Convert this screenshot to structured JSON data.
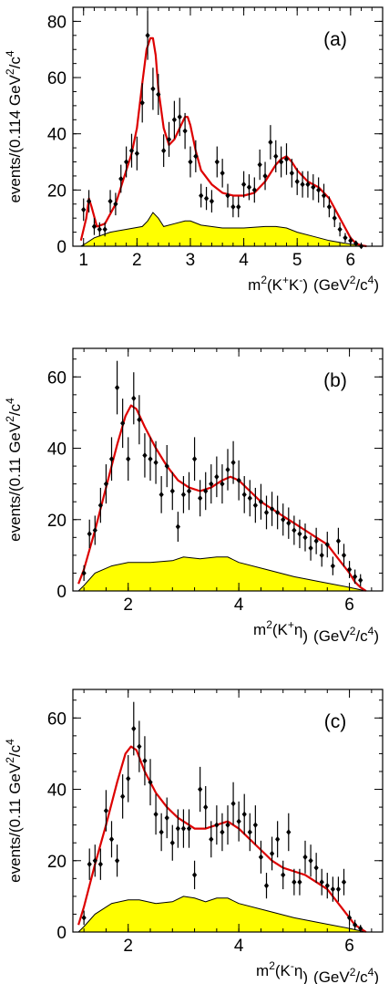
{
  "colors": {
    "fit": "#dd0000",
    "background_fill": "#ffff00",
    "background_edge": "#000000",
    "points": "#000000"
  },
  "chart_data": [
    {
      "type": "scatter",
      "panel_label": "(a)",
      "xlabel": {
        "main": "m",
        "sup1": "2",
        "paren_open": "(K",
        "sup2": "+",
        "mid": "K",
        "sup3": "-",
        "paren_close": ")",
        "unit_pre": "(GeV",
        "unit_sup1": "2",
        "unit_mid": "/c",
        "unit_sup2": "4",
        "unit_post": ")"
      },
      "ylabel": {
        "pre": "events/(0.114 GeV",
        "sup1": "2",
        "mid": "/c",
        "sup2": "4"
      },
      "xlim": [
        0.8,
        6.6
      ],
      "ylim": [
        0,
        85
      ],
      "xticks": [
        1,
        2,
        3,
        4,
        5,
        6
      ],
      "yticks": [
        0,
        20,
        40,
        60,
        80
      ],
      "data": {
        "x": [
          1.0,
          1.1,
          1.2,
          1.3,
          1.4,
          1.5,
          1.6,
          1.7,
          1.8,
          1.9,
          2.0,
          2.1,
          2.2,
          2.3,
          2.4,
          2.5,
          2.6,
          2.7,
          2.8,
          2.9,
          3.0,
          3.1,
          3.2,
          3.3,
          3.4,
          3.5,
          3.6,
          3.7,
          3.8,
          3.9,
          4.0,
          4.1,
          4.2,
          4.3,
          4.4,
          4.5,
          4.6,
          4.7,
          4.8,
          4.9,
          5.0,
          5.1,
          5.2,
          5.3,
          5.4,
          5.5,
          5.6,
          5.7,
          5.8,
          5.9,
          6.0,
          6.1,
          6.2
        ],
        "y": [
          13,
          16,
          7,
          6,
          6,
          16,
          15,
          24,
          30,
          34,
          33,
          51,
          75,
          56,
          54,
          34,
          38,
          45,
          46,
          41,
          30,
          32,
          18,
          17,
          16,
          30,
          26,
          18,
          14,
          14,
          22,
          21,
          20,
          29,
          25,
          37,
          32,
          30,
          31,
          26,
          23,
          22,
          22,
          21,
          20,
          18,
          14,
          10,
          6,
          3,
          2,
          1,
          0
        ],
        "err": [
          4,
          4,
          3,
          2.5,
          2.5,
          4,
          4,
          5,
          5.5,
          6,
          6,
          7,
          8.7,
          7.5,
          7.3,
          5.8,
          6.2,
          6.7,
          6.8,
          6.4,
          5.5,
          5.7,
          4.2,
          4.1,
          4,
          5.5,
          5.1,
          4.2,
          3.7,
          3.7,
          4.7,
          4.6,
          4.5,
          5.4,
          5,
          6.1,
          5.7,
          5.5,
          5.6,
          5.1,
          4.8,
          4.7,
          4.7,
          4.6,
          4.5,
          4.2,
          3.7,
          3.2,
          2.5,
          1.7,
          1.4,
          1,
          0.5
        ]
      },
      "fit": {
        "x": [
          0.95,
          1.05,
          1.1,
          1.15,
          1.25,
          1.4,
          1.6,
          1.8,
          1.9,
          2.0,
          2.1,
          2.18,
          2.25,
          2.3,
          2.35,
          2.4,
          2.5,
          2.6,
          2.7,
          2.8,
          2.9,
          2.95,
          3.0,
          3.1,
          3.2,
          3.4,
          3.6,
          3.8,
          4.0,
          4.2,
          4.4,
          4.6,
          4.7,
          4.8,
          4.9,
          5.0,
          5.2,
          5.4,
          5.6,
          5.8,
          6.0,
          6.1,
          6.2,
          6.3
        ],
        "y": [
          2,
          10,
          17,
          14,
          7,
          8,
          15,
          27,
          33,
          42,
          58,
          70,
          74,
          74,
          68,
          56,
          42,
          36,
          38,
          42,
          46,
          46,
          43,
          34,
          27,
          22,
          19,
          18,
          18,
          19,
          23,
          29,
          31,
          32,
          30,
          27,
          23,
          21,
          17,
          10,
          3,
          1,
          0.3,
          0
        ]
      },
      "background": {
        "x": [
          0.95,
          1.0,
          1.2,
          1.5,
          1.8,
          2.1,
          2.2,
          2.3,
          2.4,
          2.5,
          2.7,
          2.9,
          3.0,
          3.2,
          3.6,
          4.0,
          4.4,
          4.6,
          4.8,
          5.0,
          5.3,
          5.6,
          5.9,
          6.3
        ],
        "y": [
          0,
          0.5,
          3,
          5,
          6,
          7,
          9,
          12,
          10,
          7,
          8,
          9,
          9,
          7.5,
          6.5,
          6.5,
          7,
          7,
          6.5,
          5,
          3.5,
          2,
          1,
          0
        ]
      }
    },
    {
      "type": "scatter",
      "panel_label": "(b)",
      "xlabel": {
        "main": "m",
        "sup1": "2",
        "paren_open": "(K",
        "sup2": "+",
        "mid": "η",
        "sup3": "",
        "paren_close": ")",
        "unit_pre": "(GeV",
        "unit_sup1": "2",
        "unit_mid": "/c",
        "unit_sup2": "4",
        "unit_post": ")"
      },
      "ylabel": {
        "pre": "events/(0.11 GeV",
        "sup1": "2",
        "mid": "/c",
        "sup2": "4"
      },
      "xlim": [
        1.0,
        6.6
      ],
      "ylim": [
        0,
        68
      ],
      "xticks": [
        2,
        4,
        6
      ],
      "yticks": [
        0,
        20,
        40,
        60
      ],
      "data": {
        "x": [
          1.2,
          1.3,
          1.4,
          1.5,
          1.6,
          1.7,
          1.8,
          1.9,
          2.0,
          2.1,
          2.2,
          2.3,
          2.4,
          2.5,
          2.6,
          2.7,
          2.8,
          2.9,
          3.0,
          3.1,
          3.2,
          3.3,
          3.4,
          3.5,
          3.6,
          3.7,
          3.8,
          3.9,
          4.0,
          4.1,
          4.2,
          4.3,
          4.4,
          4.5,
          4.6,
          4.7,
          4.8,
          4.9,
          5.0,
          5.1,
          5.2,
          5.3,
          5.4,
          5.5,
          5.6,
          5.7,
          5.8,
          5.9,
          6.0,
          6.1,
          6.2
        ],
        "y": [
          5,
          16,
          17,
          24,
          30,
          37,
          57,
          47,
          37,
          54,
          48,
          38,
          37,
          36,
          27,
          35,
          28,
          18,
          27,
          28,
          37,
          26,
          28,
          30,
          32,
          30,
          34,
          36,
          31,
          27,
          26,
          24,
          25,
          22,
          23,
          22,
          20,
          19,
          17,
          16,
          15,
          12,
          14,
          10,
          13,
          7,
          14,
          10,
          6,
          4,
          3
        ],
        "err": [
          2.2,
          4,
          4.1,
          4.9,
          5.5,
          6.1,
          7.5,
          6.9,
          6.1,
          7.3,
          6.9,
          6.2,
          6.1,
          6,
          5.2,
          5.9,
          5.3,
          4.2,
          5.2,
          5.3,
          6.1,
          5.1,
          5.3,
          5.5,
          5.7,
          5.5,
          5.8,
          6,
          5.6,
          5.2,
          5.1,
          4.9,
          5,
          4.7,
          4.8,
          4.7,
          4.5,
          4.4,
          4.1,
          4,
          3.9,
          3.5,
          3.7,
          3.2,
          3.6,
          2.6,
          3.7,
          3.2,
          2.4,
          2,
          1.7
        ]
      },
      "fit": {
        "x": [
          1.1,
          1.2,
          1.4,
          1.6,
          1.8,
          1.95,
          2.05,
          2.15,
          2.3,
          2.5,
          2.7,
          2.9,
          3.1,
          3.3,
          3.5,
          3.7,
          3.85,
          4.0,
          4.2,
          4.4,
          4.6,
          4.8,
          5.0,
          5.2,
          5.4,
          5.6,
          5.8,
          6.0,
          6.1,
          6.2,
          6.3
        ],
        "y": [
          2,
          6,
          17,
          29,
          41,
          49,
          52,
          51,
          46,
          40,
          35,
          31,
          29,
          28,
          29,
          31,
          32,
          31,
          28,
          25,
          23,
          21,
          19,
          17,
          15,
          13,
          9,
          5,
          2.5,
          1,
          0
        ]
      },
      "background": {
        "x": [
          1.1,
          1.2,
          1.4,
          1.7,
          2.0,
          2.4,
          2.8,
          3.0,
          3.3,
          3.6,
          3.8,
          4.0,
          4.5,
          5.0,
          5.5,
          6.0,
          6.3
        ],
        "y": [
          0,
          1.5,
          5,
          7,
          8,
          8,
          8.5,
          9.5,
          9,
          9.5,
          9.5,
          8,
          6,
          4,
          2.5,
          1,
          0
        ]
      }
    },
    {
      "type": "scatter",
      "panel_label": "(c)",
      "xlabel": {
        "main": "m",
        "sup1": "2",
        "paren_open": "(K",
        "sup2": "-",
        "mid": "η",
        "sup3": "",
        "paren_close": ")",
        "unit_pre": "(GeV",
        "unit_sup1": "2",
        "unit_mid": "/c",
        "unit_sup2": "4",
        "unit_post": ")"
      },
      "ylabel": {
        "pre": "events/(0.11 GeV",
        "sup1": "2",
        "mid": "/c",
        "sup2": "4"
      },
      "xlim": [
        1.0,
        6.6
      ],
      "ylim": [
        0,
        68
      ],
      "xticks": [
        2,
        4,
        6
      ],
      "yticks": [
        0,
        20,
        40,
        60
      ],
      "data": {
        "x": [
          1.2,
          1.3,
          1.4,
          1.5,
          1.6,
          1.7,
          1.8,
          1.9,
          2.0,
          2.1,
          2.2,
          2.3,
          2.4,
          2.5,
          2.6,
          2.7,
          2.8,
          2.9,
          3.0,
          3.1,
          3.2,
          3.3,
          3.4,
          3.5,
          3.6,
          3.7,
          3.8,
          3.9,
          4.0,
          4.1,
          4.2,
          4.3,
          4.4,
          4.5,
          4.6,
          4.7,
          4.8,
          4.9,
          5.0,
          5.1,
          5.2,
          5.3,
          5.4,
          5.5,
          5.6,
          5.7,
          5.8,
          5.9,
          6.0,
          6.1,
          6.2
        ],
        "y": [
          4,
          19,
          20,
          19,
          34,
          26,
          20,
          38,
          43,
          57,
          52,
          48,
          42,
          33,
          28,
          32,
          25,
          29,
          29,
          29,
          16,
          40,
          35,
          26,
          30,
          28,
          30,
          36,
          31,
          33,
          28,
          30,
          21,
          13,
          22,
          26,
          16,
          28,
          14,
          14,
          21,
          20,
          18,
          14,
          13,
          12,
          12,
          14,
          4,
          2,
          1
        ],
        "err": [
          2,
          4.4,
          4.5,
          4.4,
          5.8,
          5.1,
          4.5,
          6.2,
          6.6,
          7.5,
          7.2,
          6.9,
          6.5,
          5.7,
          5.3,
          5.7,
          5,
          5.4,
          5.4,
          5.4,
          4,
          6.3,
          5.9,
          5.1,
          5.5,
          5.3,
          5.5,
          6,
          5.6,
          5.7,
          5.3,
          5.5,
          4.6,
          3.6,
          4.7,
          5.1,
          4,
          5.3,
          3.7,
          3.7,
          4.6,
          4.5,
          4.2,
          3.7,
          3.6,
          3.5,
          3.5,
          3.7,
          2,
          1.4,
          1
        ]
      },
      "fit": {
        "x": [
          1.1,
          1.2,
          1.4,
          1.6,
          1.8,
          1.95,
          2.05,
          2.15,
          2.3,
          2.5,
          2.7,
          2.9,
          3.1,
          3.2,
          3.4,
          3.6,
          3.8,
          4.0,
          4.2,
          4.4,
          4.6,
          4.8,
          5.0,
          5.2,
          5.4,
          5.6,
          5.8,
          6.0,
          6.1,
          6.2,
          6.3
        ],
        "y": [
          2,
          7,
          19,
          30,
          42,
          50,
          52,
          51,
          45,
          39,
          35,
          32,
          30,
          29,
          29,
          30,
          31,
          29,
          26,
          23,
          20,
          18,
          17,
          16,
          14,
          12,
          8,
          4,
          2,
          1,
          0
        ]
      },
      "background": {
        "x": [
          1.1,
          1.2,
          1.4,
          1.7,
          2.0,
          2.2,
          2.5,
          2.8,
          3.0,
          3.2,
          3.4,
          3.6,
          3.8,
          4.0,
          4.5,
          5.0,
          5.5,
          6.0,
          6.3
        ],
        "y": [
          0,
          1.5,
          5,
          8,
          9,
          9,
          8,
          8.5,
          10,
          9.5,
          8.5,
          9.5,
          9.5,
          8,
          6,
          4,
          2.5,
          1,
          0
        ]
      }
    }
  ]
}
